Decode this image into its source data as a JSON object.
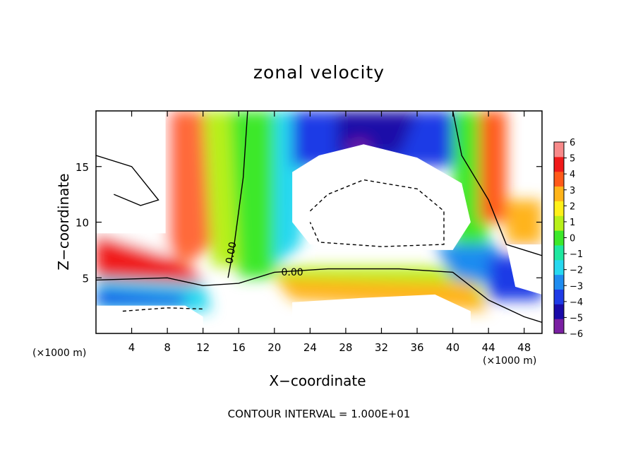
{
  "chart_data": {
    "type": "heatmap",
    "title": "zonal velocity",
    "xlabel": "X−coordinate",
    "ylabel": "Z−coordinate",
    "x_unit_label_left": "(×1000 m)",
    "x_unit_label_right": "(×1000 m)",
    "footer": "CONTOUR INTERVAL = 1.000E+01",
    "xlim": [
      0,
      50
    ],
    "ylim": [
      0,
      20
    ],
    "x_ticks": [
      "4",
      "8",
      "12",
      "16",
      "20",
      "24",
      "28",
      "32",
      "36",
      "40",
      "44",
      "48"
    ],
    "y_ticks": [
      "5",
      "10",
      "15"
    ],
    "colorbar_ticks": [
      "6",
      "5",
      "4",
      "3",
      "2",
      "1",
      "0",
      "−1",
      "−2",
      "−3",
      "−4",
      "−5",
      "−6"
    ],
    "colorbar_range": [
      -6,
      6
    ],
    "contour_labels": [
      "0.00",
      "0.00"
    ],
    "colormap": [
      "#7a1fa2",
      "#1a0aa8",
      "#1f3be6",
      "#1f8cf0",
      "#27d8f0",
      "#1fe8a0",
      "#3de82a",
      "#b8f01a",
      "#fff01a",
      "#ffb41a",
      "#ff5a1a",
      "#f01a1a",
      "#f88a8a"
    ],
    "values_outside_range_blank": true
  }
}
